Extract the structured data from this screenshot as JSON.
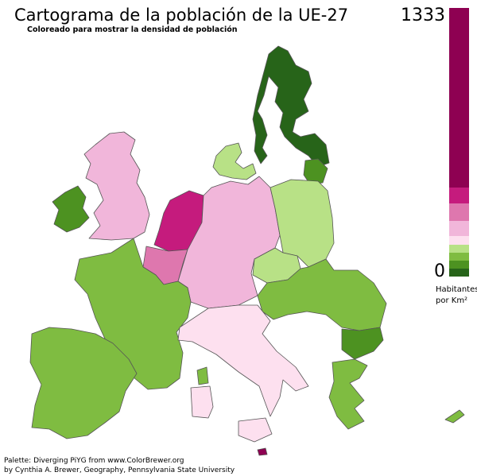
{
  "header": {
    "title": "Cartograma de la población de la UE-27",
    "subtitle": "Coloreado para mostrar la densidad de población"
  },
  "legend": {
    "max": "1333",
    "min": "0",
    "label_line1": "Habitantes",
    "label_line2": "por Km²"
  },
  "footer": {
    "line1": "Palette: Diverging PiYG from www.ColorBrewer.org",
    "line2": "by Cynthia A. Brewer, Geography, Pennsylvania State University"
  }
}
